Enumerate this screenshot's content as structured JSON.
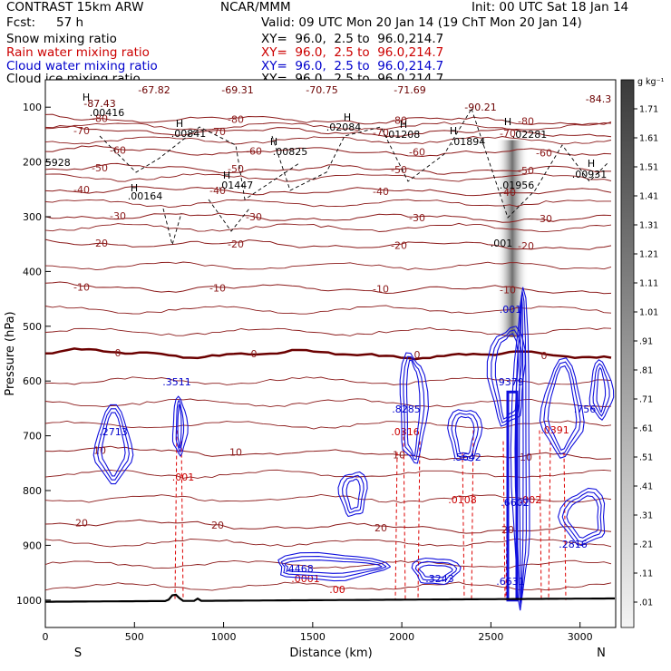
{
  "header": {
    "model": "CONTRAST 15km ARW",
    "org": "NCAR/MMM",
    "init": "Init: 00 UTC Sat 18 Jan 14",
    "fcst_label": "Fcst:",
    "fcst_value": "57 h",
    "valid": "Valid: 09 UTC Mon 20 Jan 14 (19 ChT Mon 20 Jan 14)",
    "fields": [
      {
        "name": "Snow mixing ratio",
        "xy": "XY=  96.0,  2.5 to  96.0,214.7",
        "color": "#000000"
      },
      {
        "name": "Rain water mixing ratio",
        "xy": "XY=  96.0,  2.5 to  96.0,214.7",
        "color": "#cc0000"
      },
      {
        "name": "Cloud water mixing ratio",
        "xy": "XY=  96.0,  2.5 to  96.0,214.7",
        "color": "#0000cc"
      },
      {
        "name": "Cloud ice mixing ratio",
        "xy": "XY=  96.0,  2.5 to  96.0,214.7",
        "color": "#000000"
      }
    ]
  },
  "chart_data": {
    "type": "cross-section",
    "xlabel": "Distance (km)",
    "ylabel": "Pressure (hPa)",
    "xlim": [
      0,
      3200
    ],
    "ylim": [
      1050,
      50
    ],
    "x_ticks": [
      "0",
      "500",
      "1000",
      "1500",
      "2000",
      "2500",
      "3000"
    ],
    "y_ticks": [
      "100",
      "200",
      "300",
      "400",
      "500",
      "600",
      "700",
      "800",
      "900",
      "1000"
    ],
    "endpoints": {
      "left": "S",
      "right": "N"
    },
    "colorbar": {
      "unit": "g kg⁻¹",
      "levels": [
        "1.71",
        "1.61",
        "1.51",
        "1.41",
        "1.31",
        "1.21",
        "1.11",
        "1.01",
        ".91",
        ".81",
        ".71",
        ".61",
        ".51",
        ".41",
        ".31",
        ".21",
        ".11",
        ".01"
      ]
    },
    "temperature_contours": {
      "color": "#8b1a1a",
      "zero_color": "#6b0000",
      "levels": [
        {
          "label": "20",
          "p": 858
        },
        {
          "label": "10",
          "p": 725
        },
        {
          "label": "0",
          "p": 548
        },
        {
          "label": "-10",
          "p": 428
        },
        {
          "label": "-20",
          "p": 348
        },
        {
          "label": "-30",
          "p": 298
        },
        {
          "label": "-40",
          "p": 250
        },
        {
          "label": "-50",
          "p": 210
        },
        {
          "label": "-60",
          "p": 178
        },
        {
          "label": "-70",
          "p": 142
        },
        {
          "label": "-80",
          "p": 120
        }
      ],
      "min_labels": [
        "-67.82",
        "-69.31",
        "-70.75",
        "-71.69",
        "-84.3",
        "-87.43",
        "-90.21"
      ]
    },
    "cloud_ice_maxima": [
      ".00416",
      ".00841",
      ".00825",
      ".02084",
      ".01208",
      ".01894",
      ".02281",
      ".00931",
      ".01956",
      ".00164",
      ".01447",
      ".5928",
      ".001"
    ],
    "cloud_water_maxima": [
      ".2713",
      ".3511",
      ".8285",
      ".5642",
      ".9379",
      ".756",
      ".6602",
      ".2816",
      ".4468",
      ".3243",
      ".6631",
      ".001"
    ],
    "rain_water_labels": [
      ".001",
      ".0108",
      ".0316",
      ".0391",
      ".0001",
      ".00",
      ".002"
    ],
    "snow_column": {
      "x_km": 2620,
      "p_top": 160,
      "p_bottom": 520
    }
  }
}
